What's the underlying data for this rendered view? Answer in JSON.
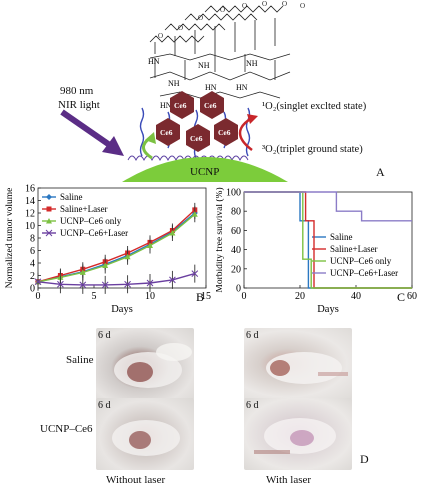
{
  "panel_a": {
    "letter": "A",
    "nir_label": [
      "980 nm",
      "NIR light"
    ],
    "core_label": "UCNP",
    "ce6_label": "Ce6",
    "singlet_label": "¹O₂(singlet exclted state)",
    "triplet_label": "³O₂(triplet ground state)",
    "ligand_labels": [
      "HN",
      "NH",
      "HN",
      "NH",
      "HN",
      "HN",
      "NH"
    ],
    "colors": {
      "ucnp": "#7ccc3b",
      "ce6": "#7b2a2f",
      "arrow": "#5b2d86",
      "cycle": "#c8262a"
    }
  },
  "panel_d": {
    "letter": "D",
    "row_labels": [
      "Saline",
      "UCNP–Ce6"
    ],
    "day_labels": [
      "6 d",
      "6 d",
      "6 d",
      "6 d"
    ],
    "col_labels": [
      "Without laser",
      "With laser"
    ]
  },
  "chart_data": [
    {
      "type": "line",
      "panel": "B",
      "xlabel": "Days",
      "ylabel": "Normalized tumor volume",
      "xlim": [
        0,
        15
      ],
      "ylim": [
        0,
        16
      ],
      "xticks": [
        0,
        5,
        10,
        15
      ],
      "yticks": [
        0,
        2,
        4,
        6,
        8,
        10,
        12,
        14,
        16
      ],
      "legend_position": "top-left",
      "x": [
        0,
        2,
        4,
        6,
        8,
        10,
        12,
        14
      ],
      "series": [
        {
          "name": "Saline",
          "color": "#2b78c2",
          "marker": "diamond",
          "values": [
            1.0,
            1.8,
            2.6,
            3.8,
            5.2,
            7.0,
            9.0,
            12.0
          ]
        },
        {
          "name": "Saline+Laser",
          "color": "#d42a2a",
          "marker": "square",
          "values": [
            1.0,
            2.0,
            3.0,
            4.2,
            5.6,
            7.3,
            9.2,
            12.5
          ]
        },
        {
          "name": "UCNP–Ce6 only",
          "color": "#7cc142",
          "marker": "triangle",
          "values": [
            1.0,
            1.7,
            2.5,
            3.6,
            5.0,
            6.8,
            8.8,
            11.8
          ]
        },
        {
          "name": "UCNP–Ce6+Laser",
          "color": "#6a3fa0",
          "marker": "cross",
          "values": [
            1.0,
            0.6,
            0.5,
            0.5,
            0.6,
            0.8,
            1.3,
            2.3
          ]
        }
      ]
    },
    {
      "type": "line",
      "panel": "C",
      "xlabel": "Days",
      "ylabel": "Morbidity free survival (%)",
      "xlim": [
        0,
        60
      ],
      "ylim": [
        0,
        100
      ],
      "xticks": [
        0,
        20,
        40,
        60
      ],
      "yticks": [
        0,
        20,
        40,
        60,
        80,
        100
      ],
      "legend_position": "bottom-right",
      "series": [
        {
          "name": "Saline",
          "color": "#2b78c2",
          "x": [
            0,
            20,
            20,
            23,
            23,
            60
          ],
          "values": [
            100,
            100,
            70,
            70,
            0,
            0
          ]
        },
        {
          "name": "Saline+Laser",
          "color": "#d42a2a",
          "x": [
            0,
            22,
            22,
            25,
            25,
            60
          ],
          "values": [
            100,
            100,
            70,
            70,
            0,
            0
          ]
        },
        {
          "name": "UCNP–Ce6 only",
          "color": "#7cc142",
          "x": [
            0,
            21,
            21,
            24,
            24,
            60
          ],
          "values": [
            100,
            100,
            30,
            30,
            0,
            0
          ]
        },
        {
          "name": "UCNP–Ce6+Laser",
          "color": "#8b7cc7",
          "x": [
            0,
            33,
            33,
            42,
            42,
            60
          ],
          "values": [
            100,
            100,
            80,
            80,
            70,
            70
          ]
        }
      ]
    }
  ]
}
